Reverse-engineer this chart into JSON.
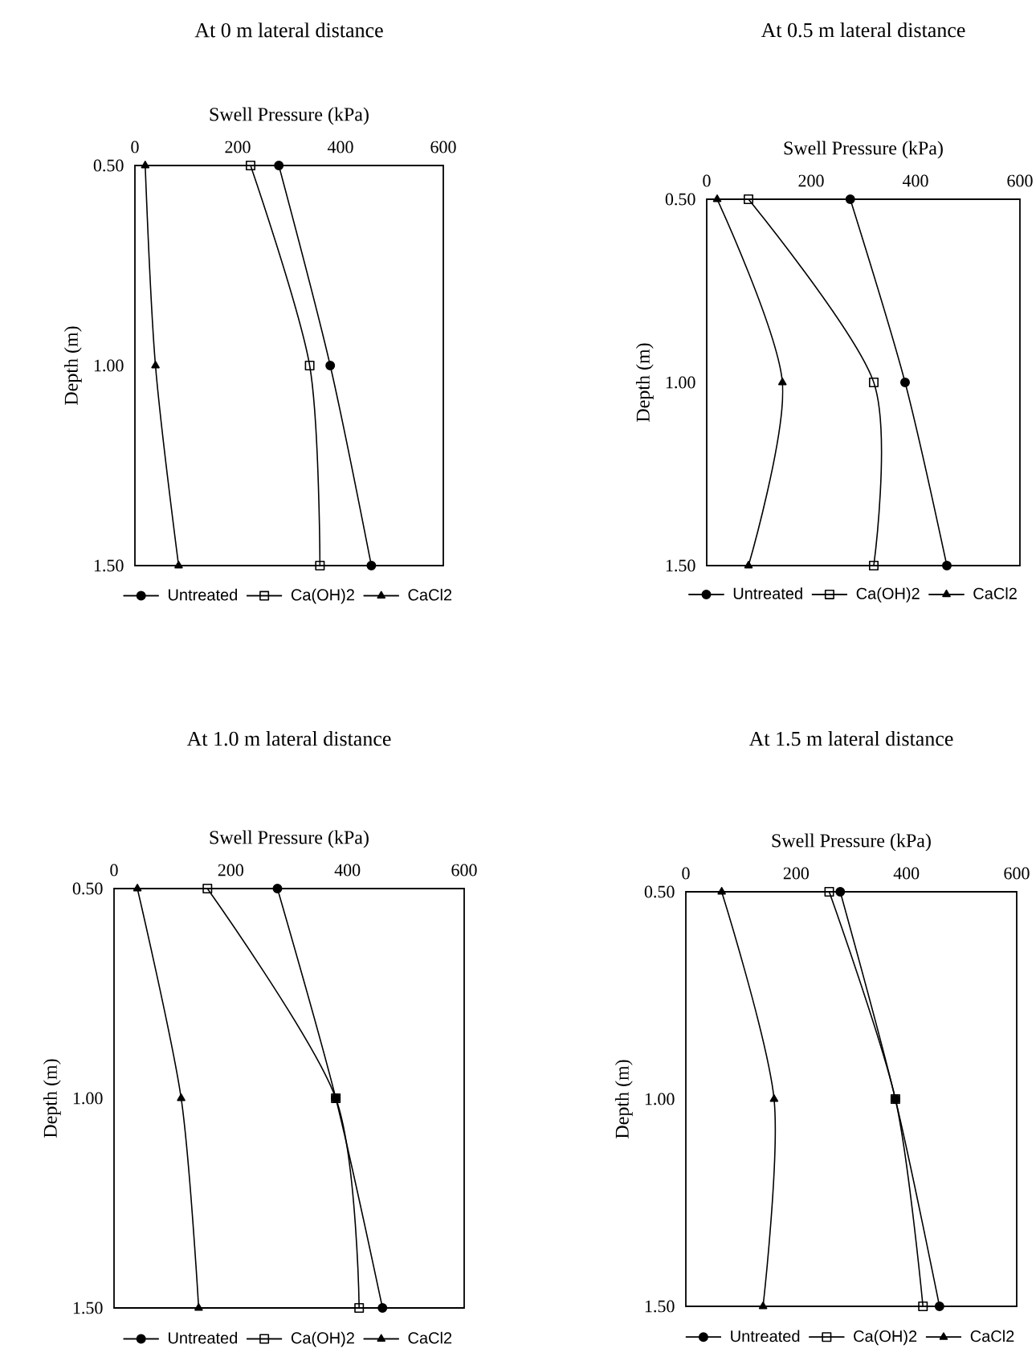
{
  "chart_data": [
    {
      "type": "line",
      "title": "At 0 m lateral distance",
      "xlabel": "Swell Pressure (kPa)",
      "ylabel": "Depth (m)",
      "xlim": [
        0,
        600
      ],
      "xticks": [
        0,
        200,
        400,
        600
      ],
      "ylim": [
        1.5,
        0.5
      ],
      "yticks": [
        {
          "value": 0.5,
          "label": "0.50"
        },
        {
          "value": 1.0,
          "label": "1.00"
        },
        {
          "value": 1.5,
          "label": "1.50"
        }
      ],
      "legend": "bottom",
      "series": [
        {
          "name": "Untreated",
          "color": "#000000",
          "marker": "circle",
          "x": [
            280,
            380,
            460
          ],
          "values": [
            0.5,
            1.0,
            1.5
          ]
        },
        {
          "name": "Ca(OH)2",
          "color": "#000000",
          "marker": "square",
          "x": [
            225,
            340,
            360
          ],
          "values": [
            0.5,
            1.0,
            1.5
          ]
        },
        {
          "name": "CaCl2",
          "color": "#000000",
          "marker": "triangle",
          "x": [
            20,
            40,
            85
          ],
          "values": [
            0.5,
            1.0,
            1.5
          ]
        }
      ]
    },
    {
      "type": "line",
      "title": "At 0.5 m lateral distance",
      "xlabel": "Swell Pressure (kPa)",
      "ylabel": "Depth (m)",
      "xlim": [
        0,
        600
      ],
      "xticks": [
        0,
        200,
        400,
        600
      ],
      "ylim": [
        1.5,
        0.5
      ],
      "yticks": [
        {
          "value": 0.5,
          "label": "0.50"
        },
        {
          "value": 1.0,
          "label": "1.00"
        },
        {
          "value": 1.5,
          "label": "1.50"
        }
      ],
      "legend": "bottom",
      "series": [
        {
          "name": "Untreated",
          "color": "#000000",
          "marker": "circle",
          "x": [
            275,
            380,
            460
          ],
          "values": [
            0.5,
            1.0,
            1.5
          ]
        },
        {
          "name": "Ca(OH)2",
          "color": "#000000",
          "marker": "square",
          "x": [
            80,
            320,
            320
          ],
          "values": [
            0.5,
            1.0,
            1.5
          ]
        },
        {
          "name": "CaCl2",
          "color": "#000000",
          "marker": "triangle",
          "x": [
            20,
            145,
            80
          ],
          "values": [
            0.5,
            1.0,
            1.5
          ]
        }
      ]
    },
    {
      "type": "line",
      "title": "At 1.0 m lateral distance",
      "xlabel": "Swell Pressure (kPa)",
      "ylabel": "Depth (m)",
      "xlim": [
        0,
        600
      ],
      "xticks": [
        0,
        200,
        400,
        600
      ],
      "ylim": [
        1.5,
        0.5
      ],
      "yticks": [
        {
          "value": 0.5,
          "label": "0.50"
        },
        {
          "value": 1.0,
          "label": "1.00"
        },
        {
          "value": 1.5,
          "label": "1.50"
        }
      ],
      "legend": "bottom",
      "series": [
        {
          "name": "Untreated",
          "color": "#000000",
          "marker": "circle",
          "x": [
            280,
            380,
            460
          ],
          "values": [
            0.5,
            1.0,
            1.5
          ]
        },
        {
          "name": "Ca(OH)2",
          "color": "#000000",
          "marker": "square",
          "x": [
            160,
            380,
            420
          ],
          "values": [
            0.5,
            1.0,
            1.5
          ]
        },
        {
          "name": "CaCl2",
          "color": "#000000",
          "marker": "triangle",
          "x": [
            40,
            115,
            145
          ],
          "values": [
            0.5,
            1.0,
            1.5
          ]
        }
      ]
    },
    {
      "type": "line",
      "title": "At 1.5 m lateral distance",
      "xlabel": "Swell Pressure (kPa)",
      "ylabel": "Depth (m)",
      "xlim": [
        0,
        600
      ],
      "xticks": [
        0,
        200,
        400,
        600
      ],
      "ylim": [
        1.5,
        0.5
      ],
      "yticks": [
        {
          "value": 0.5,
          "label": "0.50"
        },
        {
          "value": 1.0,
          "label": "1.00"
        },
        {
          "value": 1.5,
          "label": "1.50"
        }
      ],
      "legend": "bottom",
      "series": [
        {
          "name": "Untreated",
          "color": "#000000",
          "marker": "circle",
          "x": [
            280,
            380,
            460
          ],
          "values": [
            0.5,
            1.0,
            1.5
          ]
        },
        {
          "name": "Ca(OH)2",
          "color": "#000000",
          "marker": "square",
          "x": [
            260,
            380,
            430
          ],
          "values": [
            0.5,
            1.0,
            1.5
          ]
        },
        {
          "name": "CaCl2",
          "color": "#000000",
          "marker": "triangle",
          "x": [
            65,
            160,
            140
          ],
          "values": [
            0.5,
            1.0,
            1.5
          ]
        }
      ]
    }
  ]
}
